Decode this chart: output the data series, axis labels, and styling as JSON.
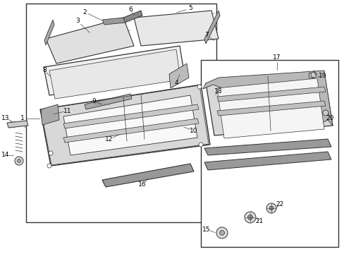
{
  "bg_color": "#ffffff",
  "line_color": "#333333",
  "fill_light": "#e8e8e8",
  "fill_mid": "#c8c8c8",
  "fill_dark": "#999999",
  "fill_white": "#f5f5f5",
  "hatch_color": "#aaaaaa"
}
